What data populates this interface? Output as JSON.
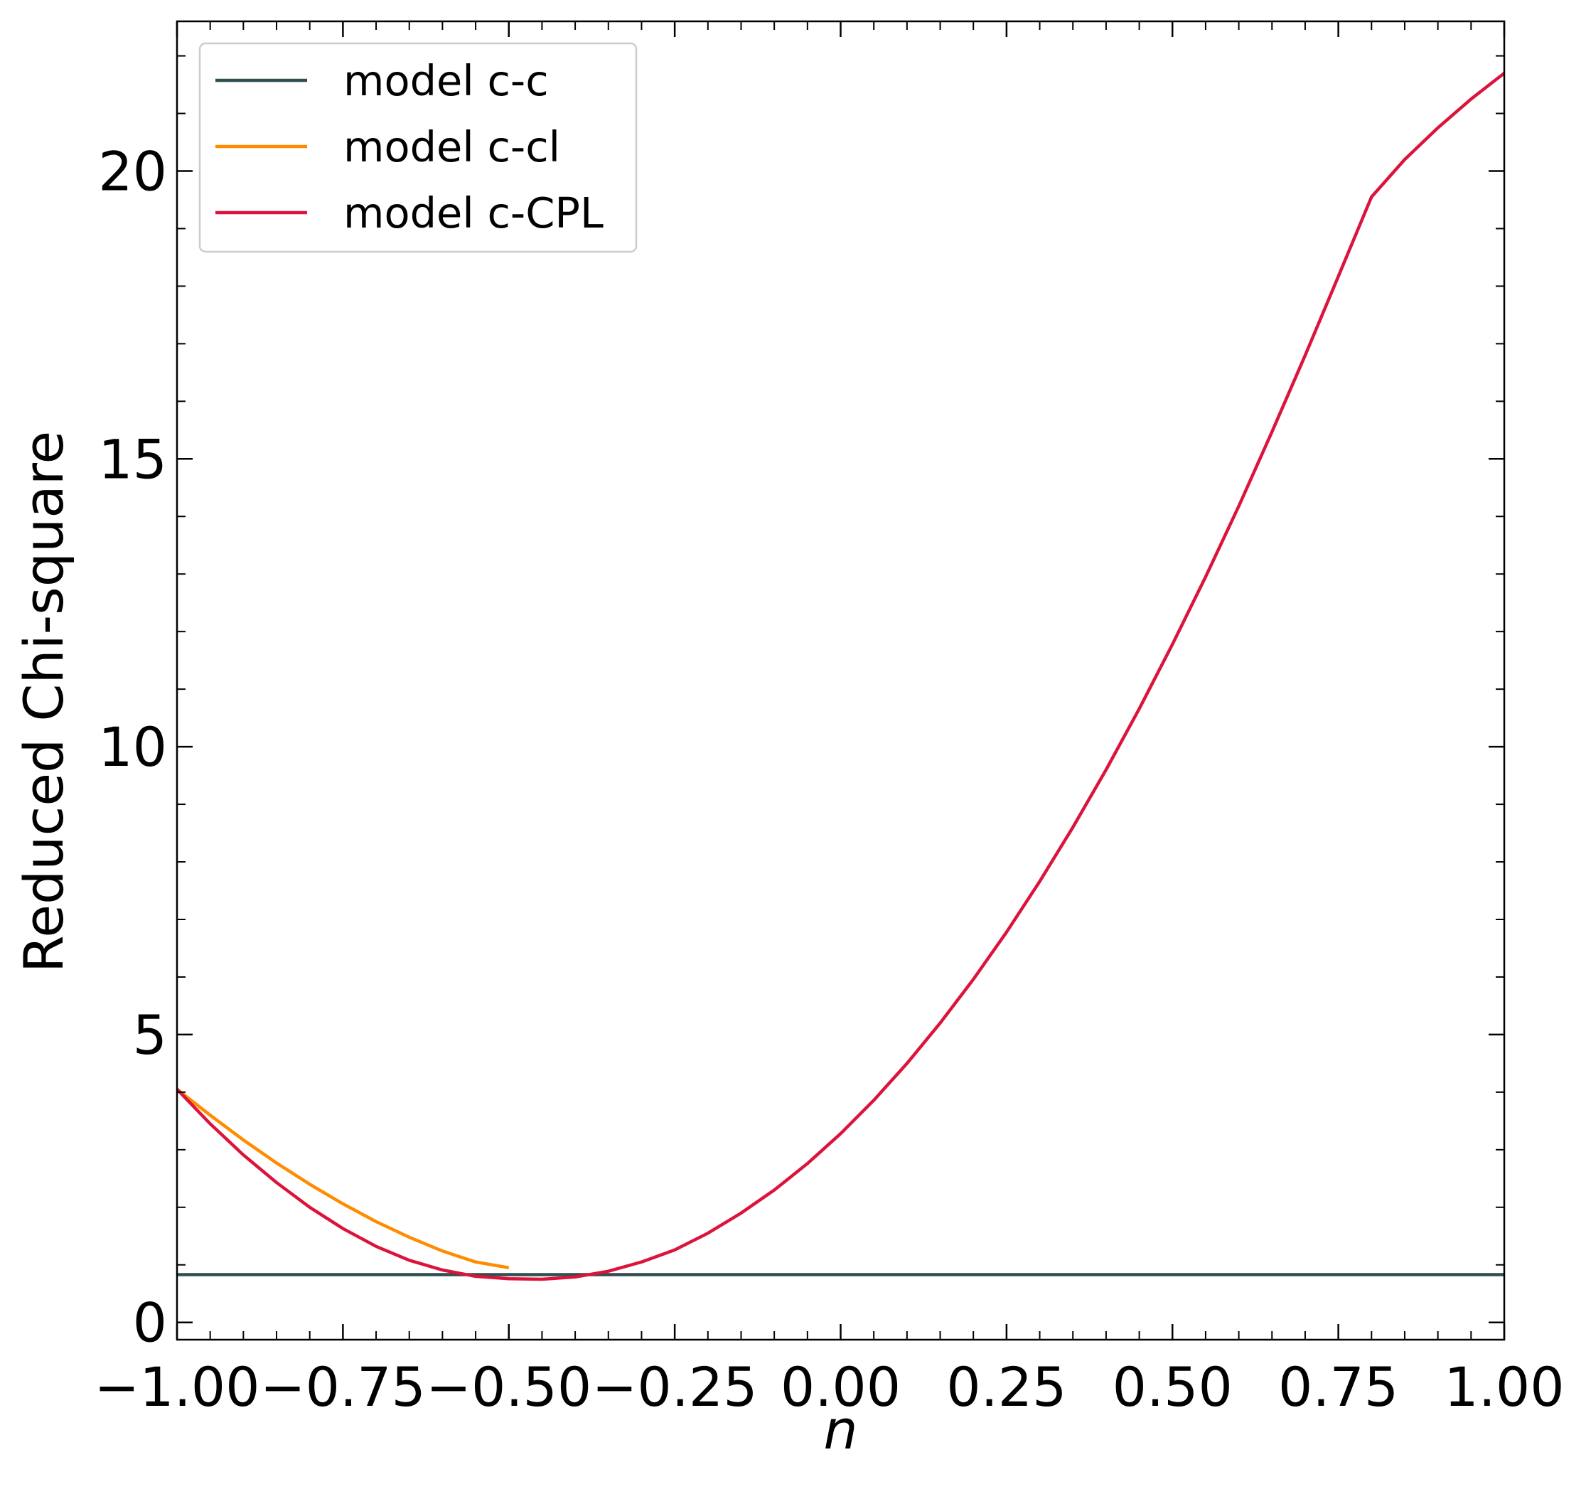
{
  "chart_data": {
    "type": "line",
    "xlabel": "n",
    "ylabel": "Reduced Chi-square",
    "xlim": [
      -1.0,
      1.0
    ],
    "ylim": [
      -0.3,
      22.6
    ],
    "x_ticks": [
      -1.0,
      -0.75,
      -0.5,
      -0.25,
      0.0,
      0.25,
      0.5,
      0.75,
      1.0
    ],
    "x_tick_labels": [
      "−1.00",
      "−0.75",
      "−0.50",
      "−0.25",
      "0.00",
      "0.25",
      "0.50",
      "0.75",
      "1.00"
    ],
    "y_ticks": [
      0,
      5,
      10,
      15,
      20
    ],
    "y_tick_labels": [
      "0",
      "5",
      "10",
      "15",
      "20"
    ],
    "grid": false,
    "legend": "top-left",
    "series": [
      {
        "name": "model c-c",
        "color": "#2f4f4f",
        "x": [
          -1.0,
          1.0
        ],
        "y": [
          0.83,
          0.83
        ]
      },
      {
        "name": "model c-cl",
        "color": "#ff8c00",
        "x": [
          -1.0,
          -0.95,
          -0.9,
          -0.85,
          -0.8,
          -0.75,
          -0.7,
          -0.65,
          -0.6,
          -0.55,
          -0.5
        ],
        "y": [
          4.05,
          3.6,
          3.17,
          2.77,
          2.4,
          2.06,
          1.75,
          1.48,
          1.24,
          1.05,
          0.95
        ]
      },
      {
        "name": "model c-CPL",
        "color": "#dc143c",
        "x": [
          -1.0,
          -0.95,
          -0.9,
          -0.85,
          -0.8,
          -0.75,
          -0.7,
          -0.65,
          -0.6,
          -0.55,
          -0.5,
          -0.45,
          -0.4,
          -0.35,
          -0.3,
          -0.25,
          -0.2,
          -0.15,
          -0.1,
          -0.05,
          0.0,
          0.05,
          0.1,
          0.15,
          0.2,
          0.25,
          0.3,
          0.35,
          0.4,
          0.45,
          0.5,
          0.55,
          0.6,
          0.65,
          0.7,
          0.75,
          0.8,
          0.85,
          0.9,
          0.95,
          1.0
        ],
        "y": [
          4.05,
          3.45,
          2.91,
          2.43,
          2.0,
          1.63,
          1.32,
          1.08,
          0.91,
          0.8,
          0.76,
          0.75,
          0.79,
          0.89,
          1.05,
          1.26,
          1.55,
          1.9,
          2.3,
          2.76,
          3.28,
          3.86,
          4.5,
          5.2,
          5.96,
          6.78,
          7.66,
          8.6,
          9.6,
          10.66,
          11.78,
          12.95,
          14.18,
          15.47,
          16.8,
          18.17,
          19.55,
          20.2,
          20.75,
          21.25,
          21.7
        ]
      }
    ]
  }
}
